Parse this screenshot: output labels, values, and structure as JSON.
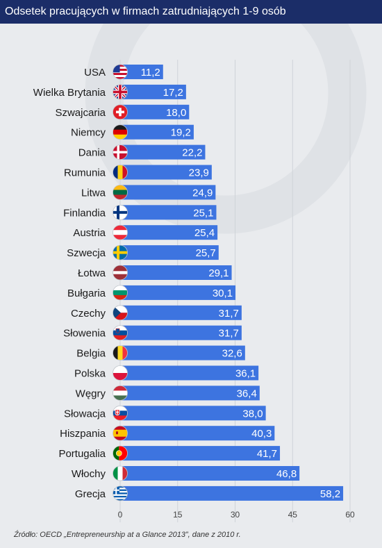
{
  "title": "Odsetek pracujących w firmach zatrudniających 1-9 osób",
  "source": "Źródło: OECD „Entrepreneurship at a Glance 2013”, dane z 2010 r.",
  "colors": {
    "bar": "#3d74e0",
    "title_bg": "#1b2d68",
    "background": "#e9ebee"
  },
  "chart_data": {
    "type": "bar",
    "orientation": "horizontal",
    "categories": [
      "USA",
      "Wielka Brytania",
      "Szwajcaria",
      "Niemcy",
      "Dania",
      "Rumunia",
      "Litwa",
      "Finlandia",
      "Austria",
      "Szwecja",
      "Łotwa",
      "Bułgaria",
      "Czechy",
      "Słowenia",
      "Belgia",
      "Polska",
      "Węgry",
      "Słowacja",
      "Hiszpania",
      "Portugalia",
      "Włochy",
      "Grecja"
    ],
    "values": [
      11.2,
      17.2,
      18.0,
      19.2,
      22.2,
      23.9,
      24.9,
      25.1,
      25.4,
      25.7,
      29.1,
      30.1,
      31.7,
      31.7,
      32.6,
      36.1,
      36.4,
      38.0,
      40.3,
      41.7,
      46.8,
      58.2
    ],
    "value_labels": [
      "11,2",
      "17,2",
      "18,0",
      "19,2",
      "22,2",
      "23,9",
      "24,9",
      "25,1",
      "25,4",
      "25,7",
      "29,1",
      "30,1",
      "31,7",
      "31,7",
      "32,6",
      "36,1",
      "36,4",
      "38,0",
      "40,3",
      "41,7",
      "46,8",
      "58,2"
    ],
    "flag_icons": [
      "flag-us-icon",
      "flag-uk-icon",
      "flag-ch-icon",
      "flag-de-icon",
      "flag-dk-icon",
      "flag-ro-icon",
      "flag-lt-icon",
      "flag-fi-icon",
      "flag-at-icon",
      "flag-se-icon",
      "flag-lv-icon",
      "flag-bg-icon",
      "flag-cz-icon",
      "flag-si-icon",
      "flag-be-icon",
      "flag-pl-icon",
      "flag-hu-icon",
      "flag-sk-icon",
      "flag-es-icon",
      "flag-pt-icon",
      "flag-it-icon",
      "flag-gr-icon"
    ],
    "xticks": [
      0,
      15,
      30,
      45,
      60
    ],
    "xtick_labels": [
      "0",
      "15",
      "30",
      "45",
      "60"
    ],
    "xlim": [
      0,
      60
    ],
    "grid": true
  }
}
